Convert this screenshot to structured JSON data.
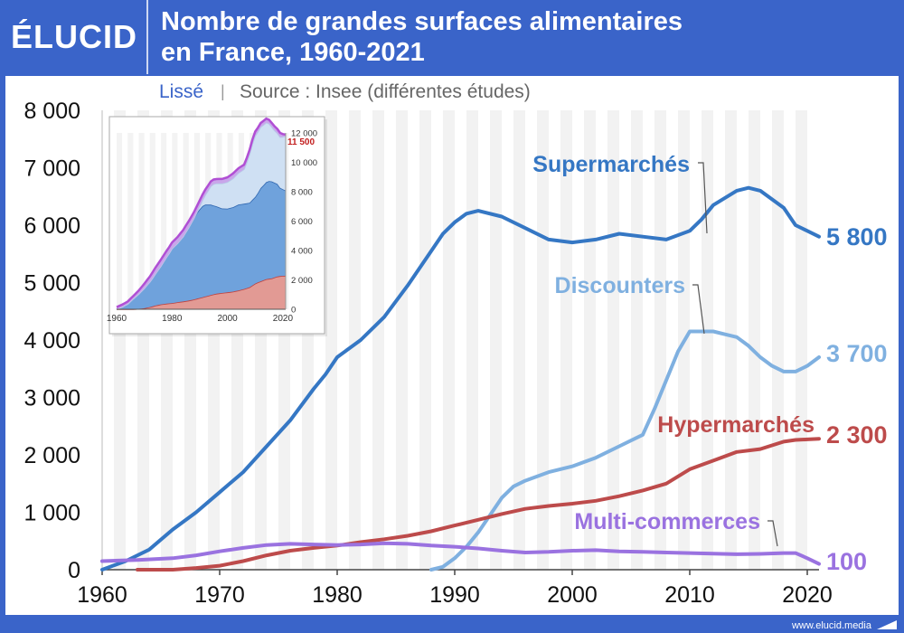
{
  "header": {
    "logo": "ÉLUCID",
    "title_line1": "Nombre de grandes surfaces alimentaires",
    "title_line2": "en France, 1960-2021"
  },
  "subtitle": {
    "smoothed": "Lissé",
    "separator": "|",
    "source": "Source : Insee (différentes études)"
  },
  "footer": {
    "url": "www.elucid.media"
  },
  "colors": {
    "supermarches": "#3577c4",
    "discounters": "#7fb0e0",
    "hypermarches": "#bd4b4b",
    "multicommerces": "#9a72e0",
    "brand": "#3a64c9"
  },
  "chart_data": [
    {
      "type": "line",
      "title": "Nombre de grandes surfaces alimentaires en France, 1960-2021",
      "xlim": [
        1960,
        2021
      ],
      "ylim": [
        0,
        8000
      ],
      "x_ticks": [
        "1960",
        "1970",
        "1980",
        "1990",
        "2000",
        "2010",
        "2020"
      ],
      "y_ticks": [
        "0",
        "1 000",
        "2 000",
        "3 000",
        "4 000",
        "5 000",
        "6 000",
        "7 000",
        "8 000"
      ],
      "grid": "alternating vertical bands",
      "series": [
        {
          "name": "Supermarchés",
          "end_label": "5 800",
          "points": [
            [
              1960,
              0
            ],
            [
              1962,
              150
            ],
            [
              1964,
              350
            ],
            [
              1966,
              700
            ],
            [
              1968,
              1000
            ],
            [
              1970,
              1350
            ],
            [
              1972,
              1700
            ],
            [
              1974,
              2150
            ],
            [
              1976,
              2600
            ],
            [
              1978,
              3150
            ],
            [
              1979,
              3400
            ],
            [
              1980,
              3700
            ],
            [
              1982,
              4000
            ],
            [
              1984,
              4400
            ],
            [
              1986,
              4950
            ],
            [
              1988,
              5550
            ],
            [
              1989,
              5850
            ],
            [
              1990,
              6050
            ],
            [
              1991,
              6200
            ],
            [
              1992,
              6250
            ],
            [
              1994,
              6150
            ],
            [
              1996,
              5950
            ],
            [
              1998,
              5750
            ],
            [
              2000,
              5700
            ],
            [
              2002,
              5750
            ],
            [
              2004,
              5850
            ],
            [
              2006,
              5800
            ],
            [
              2008,
              5750
            ],
            [
              2010,
              5900
            ],
            [
              2011,
              6100
            ],
            [
              2012,
              6350
            ],
            [
              2014,
              6600
            ],
            [
              2015,
              6650
            ],
            [
              2016,
              6600
            ],
            [
              2017,
              6450
            ],
            [
              2018,
              6300
            ],
            [
              2019,
              6000
            ],
            [
              2020,
              5900
            ],
            [
              2021,
              5800
            ]
          ]
        },
        {
          "name": "Discounters",
          "end_label": "3 700",
          "points": [
            [
              1988,
              0
            ],
            [
              1989,
              50
            ],
            [
              1990,
              200
            ],
            [
              1991,
              400
            ],
            [
              1992,
              650
            ],
            [
              1993,
              950
            ],
            [
              1994,
              1250
            ],
            [
              1995,
              1450
            ],
            [
              1996,
              1550
            ],
            [
              1998,
              1700
            ],
            [
              2000,
              1800
            ],
            [
              2002,
              1950
            ],
            [
              2004,
              2150
            ],
            [
              2006,
              2350
            ],
            [
              2007,
              2800
            ],
            [
              2008,
              3300
            ],
            [
              2009,
              3800
            ],
            [
              2010,
              4150
            ],
            [
              2011,
              4150
            ],
            [
              2012,
              4150
            ],
            [
              2013,
              4100
            ],
            [
              2014,
              4050
            ],
            [
              2015,
              3900
            ],
            [
              2016,
              3700
            ],
            [
              2017,
              3550
            ],
            [
              2018,
              3450
            ],
            [
              2019,
              3450
            ],
            [
              2020,
              3550
            ],
            [
              2021,
              3700
            ]
          ]
        },
        {
          "name": "Hypermarchés",
          "end_label": "2 300",
          "points": [
            [
              1963,
              0
            ],
            [
              1966,
              0
            ],
            [
              1968,
              30
            ],
            [
              1970,
              70
            ],
            [
              1972,
              150
            ],
            [
              1974,
              250
            ],
            [
              1976,
              330
            ],
            [
              1978,
              380
            ],
            [
              1980,
              420
            ],
            [
              1982,
              480
            ],
            [
              1984,
              530
            ],
            [
              1986,
              590
            ],
            [
              1988,
              670
            ],
            [
              1990,
              770
            ],
            [
              1992,
              870
            ],
            [
              1994,
              970
            ],
            [
              1996,
              1060
            ],
            [
              1998,
              1110
            ],
            [
              2000,
              1150
            ],
            [
              2002,
              1200
            ],
            [
              2004,
              1280
            ],
            [
              2006,
              1380
            ],
            [
              2008,
              1500
            ],
            [
              2010,
              1750
            ],
            [
              2012,
              1900
            ],
            [
              2014,
              2050
            ],
            [
              2016,
              2100
            ],
            [
              2018,
              2230
            ],
            [
              2019,
              2260
            ],
            [
              2020,
              2270
            ],
            [
              2021,
              2280
            ]
          ]
        },
        {
          "name": "Multi-commerces",
          "end_label": "100",
          "points": [
            [
              1960,
              150
            ],
            [
              1963,
              170
            ],
            [
              1966,
              200
            ],
            [
              1968,
              250
            ],
            [
              1970,
              320
            ],
            [
              1972,
              380
            ],
            [
              1974,
              430
            ],
            [
              1976,
              450
            ],
            [
              1978,
              440
            ],
            [
              1980,
              430
            ],
            [
              1982,
              440
            ],
            [
              1984,
              460
            ],
            [
              1986,
              450
            ],
            [
              1988,
              420
            ],
            [
              1990,
              400
            ],
            [
              1992,
              370
            ],
            [
              1994,
              330
            ],
            [
              1996,
              300
            ],
            [
              1998,
              310
            ],
            [
              2000,
              330
            ],
            [
              2002,
              340
            ],
            [
              2004,
              320
            ],
            [
              2006,
              310
            ],
            [
              2008,
              300
            ],
            [
              2010,
              290
            ],
            [
              2012,
              280
            ],
            [
              2014,
              270
            ],
            [
              2016,
              275
            ],
            [
              2018,
              290
            ],
            [
              2019,
              290
            ],
            [
              2020,
              200
            ],
            [
              2021,
              100
            ]
          ]
        }
      ]
    },
    {
      "type": "area",
      "title": "",
      "xlim": [
        1960,
        2021
      ],
      "ylim": [
        0,
        12000
      ],
      "x_ticks": [
        "1960",
        "1980",
        "2000",
        "2020"
      ],
      "y_ticks": [
        "0",
        "2 000",
        "4 000",
        "6 000",
        "8 000",
        "10 000",
        "12 000"
      ],
      "annotation": "11 500",
      "series": [
        {
          "values_ref": "Hypermarchés"
        },
        {
          "values_ref": "Supermarchés"
        },
        {
          "values_ref": "Discounters"
        },
        {
          "values_ref": "Multi-commerces"
        }
      ]
    }
  ]
}
